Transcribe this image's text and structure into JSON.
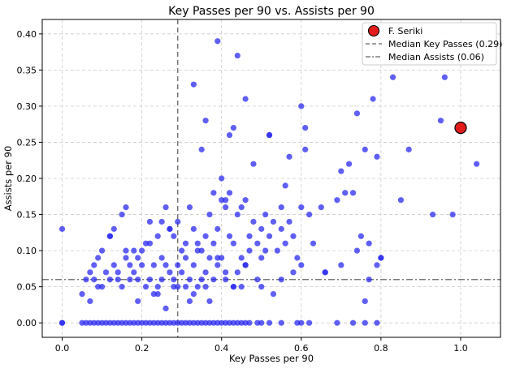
{
  "chart_data": {
    "type": "scatter",
    "title": "Key Passes per 90 vs. Assists per 90",
    "xlabel": "Key Passes per 90",
    "ylabel": "Assists per 90",
    "xlim": [
      -0.05,
      1.1
    ],
    "ylim": [
      -0.02,
      0.42
    ],
    "xticks": [
      0.0,
      0.2,
      0.4,
      0.6,
      0.8,
      1.0
    ],
    "xtick_labels": [
      "0.0",
      "0.2",
      "0.4",
      "0.6",
      "0.8",
      "1.0"
    ],
    "yticks": [
      0.0,
      0.05,
      0.1,
      0.15,
      0.2,
      0.25,
      0.3,
      0.35,
      0.4
    ],
    "ytick_labels": [
      "0.00",
      "0.05",
      "0.10",
      "0.15",
      "0.20",
      "0.25",
      "0.30",
      "0.35",
      "0.40"
    ],
    "grid": true,
    "legend_position": "top-right",
    "colors": {
      "players": "#2a2af0",
      "highlight": "#e31b1b",
      "median_line": "#666666"
    },
    "series": [
      {
        "kind": "points",
        "x": [
          0.0,
          0.0,
          0.05,
          0.06,
          0.07,
          0.07,
          0.08,
          0.09,
          0.1,
          0.1,
          0.12,
          0.12,
          0.13,
          0.13,
          0.14,
          0.15,
          0.15,
          0.16,
          0.16,
          0.17,
          0.17,
          0.18,
          0.18,
          0.19,
          0.19,
          0.2,
          0.2,
          0.21,
          0.21,
          0.22,
          0.22,
          0.23,
          0.23,
          0.24,
          0.24,
          0.25,
          0.25,
          0.26,
          0.26,
          0.27,
          0.27,
          0.28,
          0.28,
          0.29,
          0.29,
          0.3,
          0.3,
          0.31,
          0.31,
          0.32,
          0.32,
          0.33,
          0.33,
          0.34,
          0.34,
          0.35,
          0.35,
          0.36,
          0.36,
          0.37,
          0.37,
          0.38,
          0.38,
          0.39,
          0.39,
          0.4,
          0.4,
          0.41,
          0.41,
          0.42,
          0.42,
          0.43,
          0.43,
          0.44,
          0.44,
          0.45,
          0.45,
          0.46,
          0.46,
          0.47,
          0.48,
          0.49,
          0.5,
          0.5,
          0.51,
          0.52,
          0.52,
          0.53,
          0.54,
          0.55,
          0.55,
          0.56,
          0.57,
          0.58,
          0.59,
          0.6,
          0.6,
          0.61,
          0.62,
          0.63,
          0.65,
          0.66,
          0.69,
          0.7,
          0.71,
          0.72,
          0.73,
          0.74,
          0.75,
          0.76,
          0.77,
          0.78,
          0.79,
          0.8,
          0.83,
          0.85,
          0.87,
          0.93,
          0.95,
          0.96,
          0.98,
          1.04,
          0.33,
          0.39,
          0.44,
          0.46,
          0.36,
          0.6,
          0.43,
          0.52,
          0.42,
          0.57,
          0.61,
          0.35,
          0.48,
          0.56,
          0.41,
          0.4,
          0.38,
          0.31,
          0.27,
          0.25,
          0.22,
          0.16,
          0.12,
          0.11,
          0.08,
          0.5,
          0.66,
          0.7,
          0.77,
          0.79,
          0.8,
          0.09,
          0.14,
          0.19,
          0.24,
          0.28,
          0.33,
          0.37,
          0.45,
          0.49,
          0.53,
          0.58,
          0.62,
          0.29,
          0.34,
          0.39,
          0.47,
          0.51,
          0.55,
          0.74,
          0.76,
          0.26,
          0.32,
          0.36,
          0.41,
          0.43,
          0.46
        ],
        "y": [
          0.0,
          0.13,
          0.04,
          0.06,
          0.03,
          0.07,
          0.08,
          0.09,
          0.05,
          0.1,
          0.06,
          0.12,
          0.08,
          0.13,
          0.07,
          0.05,
          0.15,
          0.09,
          0.16,
          0.06,
          0.08,
          0.07,
          0.1,
          0.03,
          0.09,
          0.08,
          0.1,
          0.05,
          0.11,
          0.06,
          0.14,
          0.04,
          0.08,
          0.05,
          0.12,
          0.06,
          0.09,
          0.08,
          0.16,
          0.07,
          0.13,
          0.06,
          0.12,
          0.08,
          0.14,
          0.07,
          0.1,
          0.05,
          0.11,
          0.06,
          0.16,
          0.08,
          0.13,
          0.05,
          0.11,
          0.06,
          0.1,
          0.07,
          0.12,
          0.09,
          0.15,
          0.06,
          0.11,
          0.08,
          0.13,
          0.09,
          0.17,
          0.07,
          0.16,
          0.12,
          0.18,
          0.05,
          0.11,
          0.07,
          0.15,
          0.09,
          0.16,
          0.08,
          0.17,
          0.12,
          0.14,
          0.11,
          0.09,
          0.13,
          0.15,
          0.12,
          0.26,
          0.14,
          0.1,
          0.13,
          0.16,
          0.11,
          0.14,
          0.12,
          0.09,
          0.08,
          0.16,
          0.27,
          0.15,
          0.11,
          0.16,
          0.07,
          0.17,
          0.21,
          0.18,
          0.22,
          0.18,
          0.29,
          0.12,
          0.24,
          0.11,
          0.31,
          0.23,
          0.09,
          0.34,
          0.17,
          0.24,
          0.15,
          0.28,
          0.34,
          0.15,
          0.22,
          0.33,
          0.39,
          0.37,
          0.31,
          0.28,
          0.3,
          0.27,
          0.26,
          0.26,
          0.23,
          0.24,
          0.24,
          0.22,
          0.19,
          0.17,
          0.2,
          0.18,
          0.09,
          0.13,
          0.14,
          0.11,
          0.1,
          0.12,
          0.07,
          0.06,
          0.05,
          0.07,
          0.08,
          0.06,
          0.08,
          0.09,
          0.05,
          0.06,
          0.06,
          0.04,
          0.05,
          0.04,
          0.03,
          0.05,
          0.06,
          0.04,
          0.07,
          0.0,
          0.05,
          0.1,
          0.09,
          0.1,
          0.1,
          0.06,
          0.1,
          0.03,
          0.02,
          0.03,
          0.05,
          0.06,
          0.05,
          0.08
        ]
      },
      {
        "kind": "zero_line_points",
        "x": [
          0.0,
          0.05,
          0.06,
          0.07,
          0.08,
          0.09,
          0.1,
          0.11,
          0.12,
          0.13,
          0.14,
          0.15,
          0.16,
          0.17,
          0.18,
          0.19,
          0.2,
          0.21,
          0.22,
          0.23,
          0.24,
          0.25,
          0.26,
          0.27,
          0.28,
          0.29,
          0.3,
          0.31,
          0.32,
          0.33,
          0.34,
          0.35,
          0.36,
          0.37,
          0.38,
          0.39,
          0.4,
          0.41,
          0.42,
          0.43,
          0.44,
          0.45,
          0.46,
          0.47,
          0.49,
          0.5,
          0.52,
          0.55,
          0.59,
          0.6,
          0.69,
          0.73,
          0.76,
          0.79
        ],
        "y": [
          0.0,
          0.0,
          0.0,
          0.0,
          0.0,
          0.0,
          0.0,
          0.0,
          0.0,
          0.0,
          0.0,
          0.0,
          0.0,
          0.0,
          0.0,
          0.0,
          0.0,
          0.0,
          0.0,
          0.0,
          0.0,
          0.0,
          0.0,
          0.0,
          0.0,
          0.0,
          0.0,
          0.0,
          0.0,
          0.0,
          0.0,
          0.0,
          0.0,
          0.0,
          0.0,
          0.0,
          0.0,
          0.0,
          0.0,
          0.0,
          0.0,
          0.0,
          0.0,
          0.0,
          0.0,
          0.0,
          0.0,
          0.0,
          0.0,
          0.0,
          0.0,
          0.0,
          0.0,
          0.0
        ]
      },
      {
        "kind": "highlight",
        "name": "F. Seriki",
        "x": [
          1.0
        ],
        "y": [
          0.27
        ]
      }
    ],
    "reference_lines": [
      {
        "orientation": "vertical",
        "value": 0.29,
        "style": "dashed",
        "name": "Median Key Passes (0.29)"
      },
      {
        "orientation": "horizontal",
        "value": 0.06,
        "style": "dashdot",
        "name": "Median Assists (0.06)"
      }
    ],
    "legend": [
      {
        "label": "F. Seriki",
        "marker": "highlight-circle"
      },
      {
        "label": "Median Key Passes (0.29)",
        "marker": "dashed-line"
      },
      {
        "label": "Median Assists (0.06)",
        "marker": "dashdot-line"
      }
    ]
  }
}
